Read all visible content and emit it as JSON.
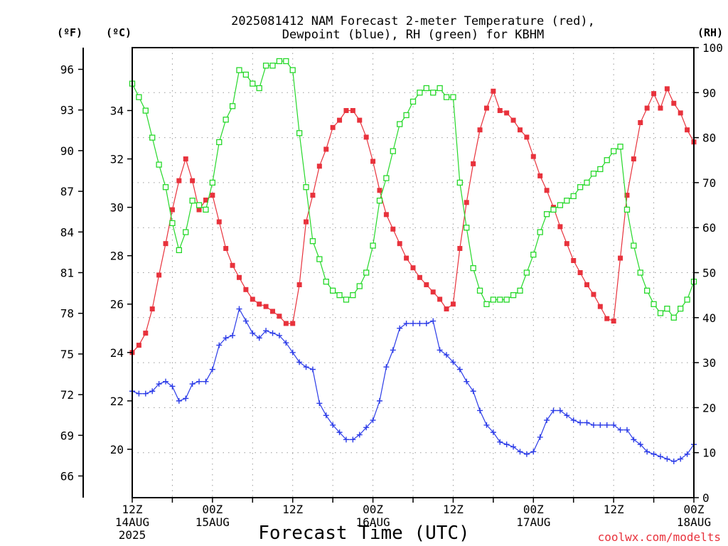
{
  "chart_data": {
    "type": "line",
    "title": [
      "2025081412 NAM Forecast 2-meter Temperature (red),",
      "Dewpoint (blue), RH (green) for KBHM"
    ],
    "xlabel": "Forecast Time (UTC)",
    "credit": "coolwx.com/modelts",
    "unit_labels": {
      "fahrenheit": "(ºF)",
      "celsius": "(ºC)",
      "rh": "(RH)"
    },
    "x_axis": {
      "unit": "forecast hour",
      "range": [
        0,
        84
      ],
      "ticks": [
        {
          "hour": 0,
          "lines": [
            "12Z",
            "14AUG",
            "2025"
          ]
        },
        {
          "hour": 12,
          "lines": [
            "00Z",
            "15AUG"
          ]
        },
        {
          "hour": 24,
          "lines": [
            "12Z"
          ]
        },
        {
          "hour": 36,
          "lines": [
            "00Z",
            "16AUG"
          ]
        },
        {
          "hour": 48,
          "lines": [
            "12Z"
          ]
        },
        {
          "hour": 60,
          "lines": [
            "00Z",
            "17AUG"
          ]
        },
        {
          "hour": 72,
          "lines": [
            "12Z"
          ]
        },
        {
          "hour": 84,
          "lines": [
            "00Z",
            "18AUG"
          ]
        }
      ]
    },
    "y_axes": {
      "fahrenheit": {
        "range": [
          64.4,
          97.6
        ],
        "ticks": [
          "66",
          "69",
          "72",
          "75",
          "78",
          "81",
          "84",
          "87",
          "90",
          "93",
          "96"
        ]
      },
      "celsius": {
        "range": [
          18,
          36.6
        ],
        "ticks": [
          "20",
          "22",
          "24",
          "26",
          "28",
          "30",
          "32",
          "34"
        ]
      },
      "rh": {
        "range": [
          0,
          100
        ],
        "ticks": [
          "0",
          "10",
          "20",
          "30",
          "40",
          "50",
          "60",
          "70",
          "80",
          "90",
          "100"
        ]
      }
    },
    "grid": true,
    "series": [
      {
        "name": "Temperature",
        "axis": "celsius",
        "color": "#e8323c",
        "marker": "filled-square",
        "values": [
          24.0,
          24.3,
          24.8,
          25.8,
          27.2,
          28.5,
          29.9,
          31.1,
          32.0,
          31.1,
          29.9,
          30.3,
          30.5,
          29.4,
          28.3,
          27.6,
          27.1,
          26.6,
          26.2,
          26.0,
          25.9,
          25.7,
          25.5,
          25.2,
          25.2,
          26.8,
          29.4,
          30.5,
          31.7,
          32.4,
          33.3,
          33.6,
          34.0,
          34.0,
          33.6,
          32.9,
          31.9,
          30.7,
          29.7,
          29.1,
          28.5,
          27.9,
          27.5,
          27.1,
          26.8,
          26.5,
          26.2,
          25.8,
          26.0,
          28.3,
          30.2,
          31.8,
          33.2,
          34.1,
          34.8,
          34.0,
          33.9,
          33.6,
          33.2,
          32.9,
          32.1,
          31.3,
          30.7,
          30.0,
          29.2,
          28.5,
          27.8,
          27.3,
          26.8,
          26.4,
          25.9,
          25.4,
          25.3,
          27.9,
          30.5,
          32.0,
          33.5,
          34.1,
          34.7,
          34.1,
          34.9,
          34.3,
          33.9,
          33.2,
          32.7
        ]
      },
      {
        "name": "Dewpoint",
        "axis": "celsius",
        "color": "#2c3ce8",
        "marker": "plus",
        "values": [
          22.4,
          22.3,
          22.3,
          22.4,
          22.7,
          22.8,
          22.6,
          22.0,
          22.1,
          22.7,
          22.8,
          22.8,
          23.3,
          24.3,
          24.6,
          24.7,
          25.8,
          25.3,
          24.8,
          24.6,
          24.9,
          24.8,
          24.7,
          24.4,
          24.0,
          23.6,
          23.4,
          23.3,
          21.9,
          21.4,
          21.0,
          20.7,
          20.4,
          20.4,
          20.6,
          20.9,
          21.2,
          22.0,
          23.4,
          24.1,
          25.0,
          25.2,
          25.2,
          25.2,
          25.2,
          25.3,
          24.1,
          23.9,
          23.6,
          23.3,
          22.8,
          22.4,
          21.6,
          21.0,
          20.7,
          20.3,
          20.2,
          20.1,
          19.9,
          19.8,
          19.9,
          20.5,
          21.2,
          21.6,
          21.6,
          21.4,
          21.2,
          21.1,
          21.1,
          21.0,
          21.0,
          21.0,
          21.0,
          20.8,
          20.8,
          20.4,
          20.2,
          19.9,
          19.8,
          19.7,
          19.6,
          19.5,
          19.6,
          19.8,
          20.2
        ]
      },
      {
        "name": "RH",
        "axis": "rh",
        "color": "#26d82a",
        "marker": "open-square",
        "values": [
          92,
          89,
          86,
          80,
          74,
          69,
          61,
          55,
          59,
          66,
          65,
          64,
          70,
          79,
          84,
          87,
          95,
          94,
          92,
          91,
          96,
          96,
          97,
          97,
          95,
          81,
          69,
          57,
          53,
          48,
          46,
          45,
          44,
          45,
          47,
          50,
          56,
          66,
          71,
          77,
          83,
          85,
          88,
          90,
          91,
          90,
          91,
          89,
          89,
          70,
          60,
          51,
          46,
          43,
          44,
          44,
          44,
          45,
          46,
          50,
          54,
          59,
          63,
          64,
          65,
          66,
          67,
          69,
          70,
          72,
          73,
          75,
          77,
          78,
          64,
          56,
          50,
          46,
          43,
          41,
          42,
          40,
          42,
          44,
          48
        ]
      }
    ]
  }
}
